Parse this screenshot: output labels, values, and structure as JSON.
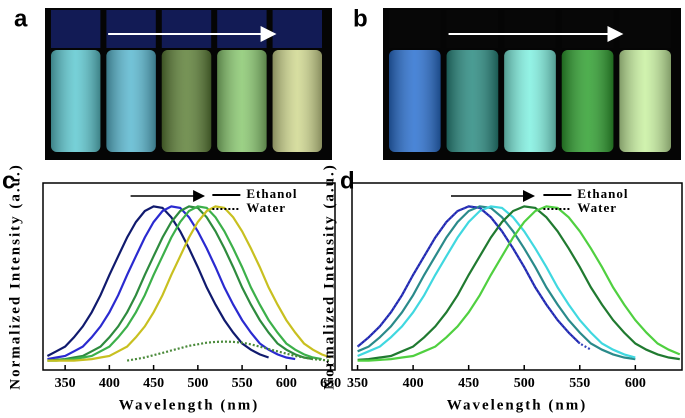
{
  "photos": [
    {
      "label": "a"
    },
    {
      "label": "b"
    }
  ],
  "chart_data": [
    {
      "type": "line",
      "panel_label": "c",
      "xlabel": "Wavelength (nm)",
      "ylabel": "Normalized Intensity (a.u.)",
      "xlim": [
        325,
        655
      ],
      "xticks": [
        350,
        400,
        450,
        500,
        550,
        600,
        650
      ],
      "ylim": [
        -0.05,
        1.15
      ],
      "legend": [
        {
          "label": "Ethanol",
          "line_style": "solid"
        },
        {
          "label": "Water",
          "line_style": "dotted"
        }
      ],
      "x": [
        330,
        340,
        350,
        360,
        370,
        380,
        390,
        400,
        410,
        420,
        430,
        440,
        450,
        460,
        470,
        480,
        490,
        500,
        510,
        520,
        530,
        540,
        550,
        560,
        570,
        580,
        590,
        600,
        610,
        620,
        630,
        640,
        650
      ],
      "series": [
        {
          "color": "#101a6e",
          "line_style": "solid",
          "values": [
            0.04,
            0.07,
            0.1,
            0.16,
            0.23,
            0.32,
            0.43,
            0.56,
            0.68,
            0.8,
            0.9,
            0.97,
            1.0,
            0.99,
            0.93,
            0.84,
            0.73,
            0.61,
            0.48,
            0.37,
            0.27,
            0.19,
            0.12,
            0.08,
            0.05,
            0.03,
            null,
            null,
            null,
            null,
            null,
            null,
            null
          ]
        },
        {
          "color": "#2a2ad0",
          "line_style": "solid",
          "values": [
            0.02,
            0.03,
            0.04,
            0.07,
            0.1,
            0.16,
            0.23,
            0.32,
            0.43,
            0.56,
            0.68,
            0.8,
            0.9,
            0.97,
            1.0,
            0.99,
            0.93,
            0.84,
            0.73,
            0.61,
            0.48,
            0.37,
            0.27,
            0.19,
            0.12,
            0.08,
            0.05,
            0.03,
            0.02,
            null,
            null,
            null,
            null
          ]
        },
        {
          "color": "#2e8b3e",
          "line_style": "solid",
          "values": [
            0.01,
            0.015,
            0.02,
            0.03,
            0.04,
            0.07,
            0.1,
            0.16,
            0.23,
            0.32,
            0.43,
            0.56,
            0.68,
            0.8,
            0.9,
            0.97,
            1.0,
            0.99,
            0.93,
            0.84,
            0.73,
            0.61,
            0.48,
            0.37,
            0.27,
            0.19,
            0.12,
            0.08,
            0.05,
            0.03,
            0.02,
            null,
            null
          ]
        },
        {
          "color": "#3cb04a",
          "line_style": "solid",
          "values": [
            0.01,
            0.01,
            0.015,
            0.02,
            0.03,
            0.04,
            0.07,
            0.1,
            0.16,
            0.23,
            0.32,
            0.43,
            0.56,
            0.68,
            0.8,
            0.9,
            0.97,
            1.0,
            0.99,
            0.93,
            0.84,
            0.73,
            0.61,
            0.48,
            0.37,
            0.27,
            0.19,
            0.12,
            0.08,
            0.05,
            0.03,
            0.02,
            null
          ]
        },
        {
          "color": "#c8c020",
          "line_style": "solid",
          "values": [
            0.01,
            0.01,
            0.01,
            0.01,
            0.015,
            0.02,
            0.03,
            0.04,
            0.07,
            0.1,
            0.16,
            0.23,
            0.32,
            0.43,
            0.56,
            0.68,
            0.8,
            0.9,
            0.97,
            1.0,
            0.99,
            0.93,
            0.84,
            0.73,
            0.61,
            0.48,
            0.37,
            0.27,
            0.19,
            0.12,
            0.08,
            0.05,
            0.03
          ]
        },
        {
          "color": "#4a8a3a",
          "line_style": "dotted",
          "values": [
            null,
            null,
            null,
            null,
            null,
            null,
            null,
            null,
            null,
            0.01,
            0.02,
            0.03,
            0.045,
            0.06,
            0.075,
            0.09,
            0.105,
            0.115,
            0.125,
            0.13,
            0.132,
            0.13,
            0.125,
            0.115,
            0.1,
            0.085,
            0.07,
            0.055,
            0.04,
            0.03,
            0.02,
            0.015,
            0.01
          ]
        }
      ]
    },
    {
      "type": "line",
      "panel_label": "d",
      "xlabel": "Wavelength (nm)",
      "ylabel": "Normalized Intensity (a.u.)",
      "xlim": [
        345,
        642
      ],
      "xticks": [
        350,
        400,
        450,
        500,
        550,
        600
      ],
      "ylim": [
        -0.05,
        1.15
      ],
      "legend": [
        {
          "label": "Ethanol",
          "line_style": "solid"
        },
        {
          "label": "Water",
          "line_style": "dotted"
        }
      ],
      "x": [
        350,
        360,
        370,
        380,
        390,
        400,
        410,
        420,
        430,
        440,
        450,
        460,
        470,
        480,
        490,
        500,
        510,
        520,
        530,
        540,
        550,
        560,
        570,
        580,
        590,
        600,
        610,
        620,
        630,
        640
      ],
      "series": [
        {
          "color": "#2020b0",
          "line_style": "solid",
          "values": [
            0.1,
            0.16,
            0.23,
            0.32,
            0.43,
            0.56,
            0.68,
            0.8,
            0.9,
            0.97,
            1.0,
            0.99,
            0.93,
            0.84,
            0.73,
            0.61,
            0.48,
            0.37,
            0.27,
            0.19,
            0.12,
            null,
            null,
            null,
            null,
            null,
            null,
            null,
            null,
            null
          ]
        },
        {
          "color": "#2a8a8a",
          "line_style": "solid",
          "values": [
            0.07,
            0.1,
            0.16,
            0.23,
            0.32,
            0.43,
            0.56,
            0.68,
            0.8,
            0.9,
            0.97,
            1.0,
            0.99,
            0.93,
            0.84,
            0.73,
            0.61,
            0.48,
            0.37,
            0.27,
            0.19,
            0.12,
            0.08,
            0.05,
            0.03,
            0.02,
            null,
            null,
            null,
            null
          ]
        },
        {
          "color": "#40d8e0",
          "line_style": "solid",
          "values": [
            0.04,
            0.07,
            0.1,
            0.16,
            0.23,
            0.32,
            0.43,
            0.56,
            0.68,
            0.8,
            0.9,
            0.97,
            1.0,
            0.99,
            0.93,
            0.84,
            0.73,
            0.61,
            0.48,
            0.37,
            0.27,
            0.19,
            0.12,
            0.08,
            0.05,
            0.03,
            null,
            null,
            null,
            null
          ]
        },
        {
          "color": "#207a30",
          "line_style": "solid",
          "values": [
            0.015,
            0.02,
            0.03,
            0.04,
            0.07,
            0.1,
            0.16,
            0.23,
            0.32,
            0.43,
            0.56,
            0.68,
            0.8,
            0.9,
            0.97,
            1.0,
            0.99,
            0.93,
            0.84,
            0.73,
            0.61,
            0.48,
            0.37,
            0.27,
            0.19,
            0.12,
            0.08,
            0.05,
            0.03,
            0.02
          ]
        },
        {
          "color": "#50d040",
          "line_style": "solid",
          "values": [
            0.01,
            0.01,
            0.015,
            0.02,
            0.03,
            0.04,
            0.07,
            0.1,
            0.16,
            0.23,
            0.32,
            0.43,
            0.56,
            0.68,
            0.8,
            0.9,
            0.97,
            1.0,
            0.99,
            0.93,
            0.84,
            0.73,
            0.61,
            0.48,
            0.37,
            0.27,
            0.19,
            0.12,
            0.08,
            0.05
          ]
        },
        {
          "color": "#3344bb",
          "line_style": "dotted",
          "values": [
            0.1,
            0.16,
            0.23,
            0.32,
            0.43,
            0.56,
            0.68,
            0.8,
            0.9,
            0.97,
            1.0,
            0.99,
            0.93,
            0.84,
            0.73,
            0.61,
            0.48,
            0.37,
            0.27,
            0.19,
            0.12,
            0.08,
            null,
            null,
            null,
            null,
            null,
            null,
            null,
            null
          ]
        }
      ]
    }
  ]
}
